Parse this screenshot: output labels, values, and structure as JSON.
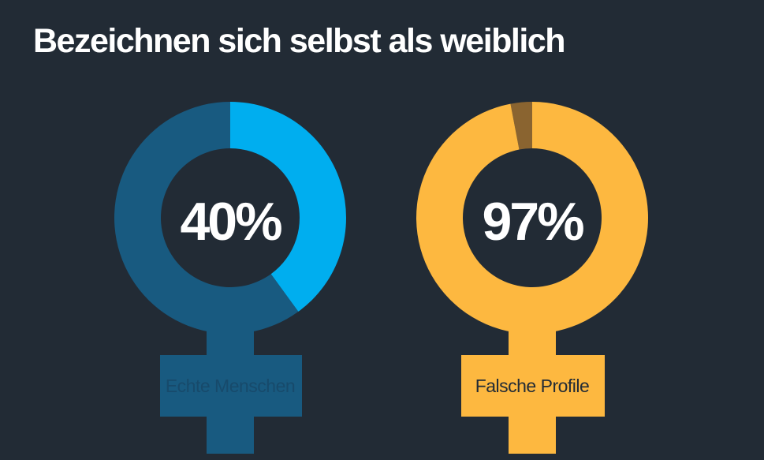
{
  "title": "Bezeichnen sich selbst als weiblich",
  "chart_data": {
    "type": "pie",
    "title": "Bezeichnen sich selbst als weiblich",
    "unit": "%",
    "charts": [
      {
        "category": "Echte Menschen",
        "value": 40,
        "value_label": "40%",
        "fill_color": "#00aeef",
        "remainder_color": "#185a80",
        "label_text_color": "#174a6b"
      },
      {
        "category": "Falsche Profile",
        "value": 97,
        "value_label": "97%",
        "fill_color": "#fdb840",
        "remainder_color": "#8a6430",
        "label_text_color": "#222b35"
      }
    ]
  },
  "colors": {
    "background": "#222b35",
    "text": "#ffffff"
  }
}
